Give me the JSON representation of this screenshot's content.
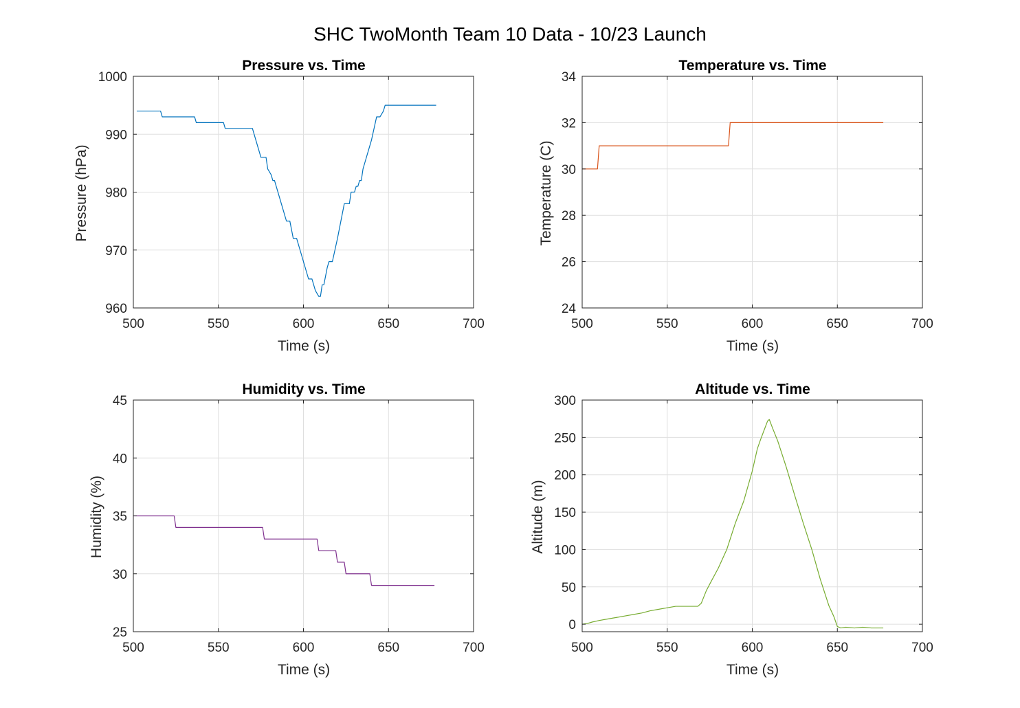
{
  "figure": {
    "suptitle": "SHC TwoMonth Team 10 Data - 10/23 Launch"
  },
  "chart_data": [
    {
      "type": "line",
      "title": "Pressure vs. Time",
      "xlabel": "Time (s)",
      "ylabel": "Pressure (hPa)",
      "xlim": [
        500,
        700
      ],
      "ylim": [
        960,
        1000
      ],
      "xticks": [
        500,
        550,
        600,
        650,
        700
      ],
      "yticks": [
        960,
        970,
        980,
        990,
        1000
      ],
      "grid": true,
      "color": "#0072BD",
      "series": [
        {
          "x": [
            502,
            516,
            517,
            536,
            537,
            553,
            554,
            570,
            572,
            575,
            578,
            579,
            581,
            582,
            583,
            586,
            590,
            592,
            594,
            596,
            597,
            598,
            600,
            603,
            605,
            606,
            607,
            609,
            610,
            611,
            612,
            614,
            615,
            617,
            620,
            622,
            624,
            627,
            628,
            630,
            631,
            632,
            633,
            634,
            635,
            636,
            640,
            643,
            645,
            647,
            648,
            650,
            652,
            660,
            670,
            678
          ],
          "y": [
            994,
            994,
            993,
            993,
            992,
            992,
            991,
            991,
            989,
            986,
            986,
            984,
            983,
            982,
            982,
            979,
            975,
            975,
            972,
            972,
            971,
            970,
            968,
            965,
            965,
            964,
            963,
            962,
            962,
            964,
            964,
            967,
            968,
            968,
            972,
            975,
            978,
            978,
            980,
            980,
            981,
            981,
            982,
            982,
            984,
            985,
            989,
            993,
            993,
            994,
            995,
            995,
            995,
            995,
            995,
            995
          ]
        }
      ]
    },
    {
      "type": "line",
      "title": "Temperature vs. Time",
      "xlabel": "Time (s)",
      "ylabel": "Temperature (C)",
      "xlim": [
        500,
        700
      ],
      "ylim": [
        24,
        34
      ],
      "xticks": [
        500,
        550,
        600,
        650,
        700
      ],
      "yticks": [
        24,
        26,
        28,
        30,
        32,
        34
      ],
      "grid": true,
      "color": "#D95319",
      "series": [
        {
          "x": [
            500,
            509,
            510,
            586,
            587,
            600,
            650,
            677
          ],
          "y": [
            30,
            30,
            31,
            31,
            32,
            32,
            32,
            32
          ]
        }
      ]
    },
    {
      "type": "line",
      "title": "Humidity vs. Time",
      "xlabel": "Time (s)",
      "ylabel": "Humidity (%)",
      "xlim": [
        500,
        700
      ],
      "ylim": [
        25,
        45
      ],
      "xticks": [
        500,
        550,
        600,
        650,
        700
      ],
      "yticks": [
        25,
        30,
        35,
        40,
        45
      ],
      "grid": true,
      "color": "#7E2F8E",
      "series": [
        {
          "x": [
            500,
            524,
            525,
            576,
            577,
            608,
            609,
            619,
            620,
            624,
            625,
            639,
            640,
            677
          ],
          "y": [
            35,
            35,
            34,
            34,
            33,
            33,
            32,
            32,
            31,
            31,
            30,
            30,
            29,
            29
          ]
        }
      ]
    },
    {
      "type": "line",
      "title": "Altitude vs. Time",
      "xlabel": "Time (s)",
      "ylabel": "Altitude (m)",
      "xlim": [
        500,
        700
      ],
      "ylim": [
        -10,
        300
      ],
      "xticks": [
        500,
        550,
        600,
        650,
        700
      ],
      "yticks": [
        0,
        50,
        100,
        150,
        200,
        250,
        300
      ],
      "grid": true,
      "color": "#77AC30",
      "series": [
        {
          "x": [
            500,
            503,
            506,
            510,
            515,
            520,
            525,
            530,
            535,
            540,
            545,
            550,
            555,
            560,
            565,
            568,
            570,
            573,
            576,
            580,
            585,
            590,
            595,
            600,
            603,
            605,
            607,
            609,
            610,
            612,
            615,
            620,
            625,
            630,
            635,
            640,
            645,
            648,
            650,
            652,
            655,
            660,
            665,
            670,
            677
          ],
          "y": [
            0,
            1,
            3,
            5,
            7,
            9,
            11,
            13,
            15,
            18,
            20,
            22,
            24,
            24,
            24,
            24,
            28,
            45,
            58,
            75,
            100,
            135,
            165,
            205,
            235,
            248,
            260,
            272,
            274,
            262,
            245,
            210,
            172,
            135,
            100,
            60,
            25,
            10,
            -3,
            -5,
            -4,
            -5,
            -4,
            -5,
            -5
          ]
        }
      ]
    }
  ]
}
